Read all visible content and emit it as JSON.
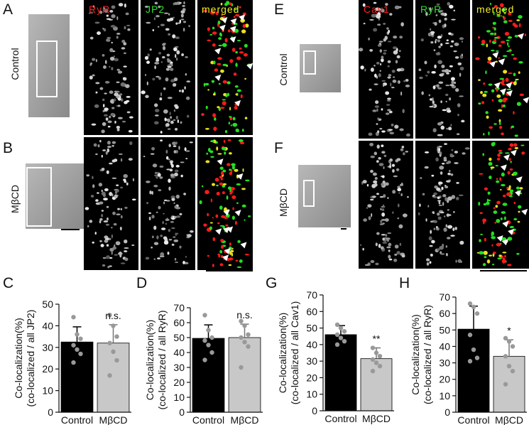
{
  "figure": {
    "panel_labels": [
      "A",
      "B",
      "C",
      "D",
      "E",
      "F",
      "G",
      "H"
    ],
    "left_columns": [
      "RyR",
      "JP2",
      "merged"
    ],
    "right_columns": [
      "Cav1",
      "RyR",
      "merged"
    ],
    "left_rows": [
      "Control",
      "MβCD"
    ],
    "right_rows": [
      "Control",
      "MβCD"
    ]
  },
  "chart_data": [
    {
      "type": "bar",
      "ylabel": [
        "Co-localization(%)",
        "(co-localized / all JP2)"
      ],
      "categories": [
        "Control",
        "MβCD"
      ],
      "values": [
        32.5,
        32
      ],
      "errors": [
        7,
        8.5
      ],
      "points": [
        [
          44,
          36,
          34,
          31,
          29,
          27,
          23
        ],
        [
          45,
          40,
          35,
          32,
          28,
          24,
          17
        ]
      ],
      "colors": [
        "#000000",
        "#c8c8c8"
      ],
      "ylim": [
        0,
        50
      ],
      "yticks": [
        0,
        10,
        20,
        30,
        40,
        50
      ],
      "annotation": "n.s."
    },
    {
      "type": "bar",
      "ylabel": [
        "Co-localization(%)",
        "(co-localized / all RyR)"
      ],
      "categories": [
        "Control",
        "MβCD"
      ],
      "values": [
        49.5,
        50
      ],
      "errors": [
        9,
        9
      ],
      "points": [
        [
          65,
          55,
          50,
          48,
          45,
          40,
          35
        ],
        [
          61,
          58,
          52,
          50,
          47,
          44,
          30
        ]
      ],
      "colors": [
        "#000000",
        "#c8c8c8"
      ],
      "ylim": [
        0,
        70
      ],
      "yticks": [
        0,
        10,
        20,
        30,
        40,
        50,
        60,
        70
      ],
      "annotation": "n.s."
    },
    {
      "type": "bar",
      "ylabel": [
        "Co-localization(%)",
        "(co-localized / all Cav1)"
      ],
      "categories": [
        "Control",
        "MβCD"
      ],
      "values": [
        46,
        31.5
      ],
      "errors": [
        5.5,
        6.5
      ],
      "points": [
        [
          52,
          50,
          48,
          46,
          44,
          42,
          40
        ],
        [
          38,
          35,
          33,
          31,
          29,
          27,
          24
        ]
      ],
      "colors": [
        "#000000",
        "#c8c8c8"
      ],
      "ylim": [
        0,
        70
      ],
      "yticks": [
        0,
        10,
        20,
        30,
        40,
        50,
        60,
        70
      ],
      "annotation": "**"
    },
    {
      "type": "bar",
      "ylabel": [
        "Co-localization(%)",
        "(co-localized / all RyR)"
      ],
      "categories": [
        "Control",
        "MβCD"
      ],
      "values": [
        50.5,
        34
      ],
      "errors": [
        14,
        10
      ],
      "points": [
        [
          66,
          64,
          60,
          47,
          38,
          33,
          31
        ],
        [
          45,
          43,
          40,
          34,
          28,
          25,
          17
        ]
      ],
      "colors": [
        "#000000",
        "#c8c8c8"
      ],
      "ylim": [
        0,
        70
      ],
      "yticks": [
        0,
        10,
        20,
        30,
        40,
        50,
        60,
        70
      ],
      "annotation": "*"
    }
  ]
}
